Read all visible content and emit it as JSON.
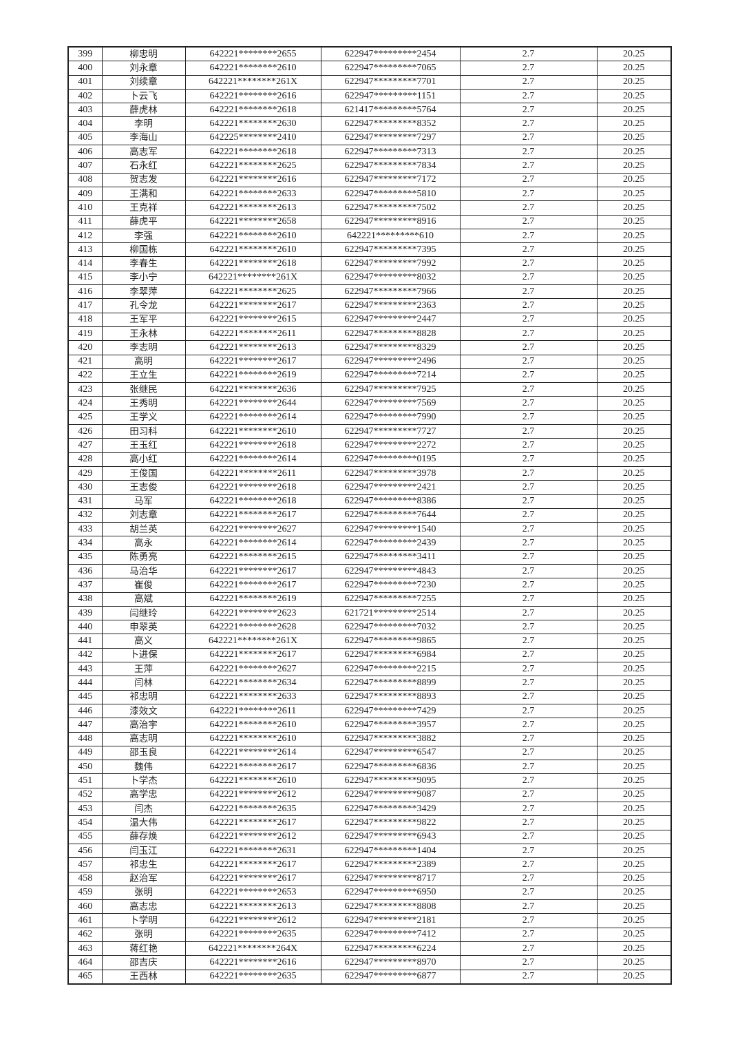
{
  "rows": [
    [
      "399",
      "柳忠明",
      "642221********2655",
      "622947*********2454",
      "2.7",
      "20.25"
    ],
    [
      "400",
      "刘永章",
      "642221********2610",
      "622947*********7065",
      "2.7",
      "20.25"
    ],
    [
      "401",
      "刘续章",
      "642221********261X",
      "622947*********7701",
      "2.7",
      "20.25"
    ],
    [
      "402",
      "卜云飞",
      "642221********2616",
      "622947*********1151",
      "2.7",
      "20.25"
    ],
    [
      "403",
      "薛虎林",
      "642221********2618",
      "621417*********5764",
      "2.7",
      "20.25"
    ],
    [
      "404",
      "李明",
      "642221********2630",
      "622947*********8352",
      "2.7",
      "20.25"
    ],
    [
      "405",
      "李海山",
      "642225********2410",
      "622947*********7297",
      "2.7",
      "20.25"
    ],
    [
      "406",
      "高志军",
      "642221********2618",
      "622947*********7313",
      "2.7",
      "20.25"
    ],
    [
      "407",
      "石永红",
      "642221********2625",
      "622947*********7834",
      "2.7",
      "20.25"
    ],
    [
      "408",
      "贺志发",
      "642221********2616",
      "622947*********7172",
      "2.7",
      "20.25"
    ],
    [
      "409",
      "王满和",
      "642221********2633",
      "622947*********5810",
      "2.7",
      "20.25"
    ],
    [
      "410",
      "王克祥",
      "642221********2613",
      "622947*********7502",
      "2.7",
      "20.25"
    ],
    [
      "411",
      "薛虎平",
      "642221********2658",
      "622947*********8916",
      "2.7",
      "20.25"
    ],
    [
      "412",
      "李强",
      "642221********2610",
      "642221*********610",
      "2.7",
      "20.25"
    ],
    [
      "413",
      "柳国栋",
      "642221********2610",
      "622947*********7395",
      "2.7",
      "20.25"
    ],
    [
      "414",
      "李春生",
      "642221********2618",
      "622947*********7992",
      "2.7",
      "20.25"
    ],
    [
      "415",
      "李小宁",
      "642221********261X",
      "622947*********8032",
      "2.7",
      "20.25"
    ],
    [
      "416",
      "李翠萍",
      "642221********2625",
      "622947*********7966",
      "2.7",
      "20.25"
    ],
    [
      "417",
      "孔令龙",
      "642221********2617",
      "622947*********2363",
      "2.7",
      "20.25"
    ],
    [
      "418",
      "王军平",
      "642221********2615",
      "622947*********2447",
      "2.7",
      "20.25"
    ],
    [
      "419",
      "王永林",
      "642221********2611",
      "622947*********8828",
      "2.7",
      "20.25"
    ],
    [
      "420",
      "李志明",
      "642221********2613",
      "622947*********8329",
      "2.7",
      "20.25"
    ],
    [
      "421",
      "高明",
      "642221********2617",
      "622947*********2496",
      "2.7",
      "20.25"
    ],
    [
      "422",
      "王立生",
      "642221********2619",
      "622947*********7214",
      "2.7",
      "20.25"
    ],
    [
      "423",
      "张继民",
      "642221********2636",
      "622947*********7925",
      "2.7",
      "20.25"
    ],
    [
      "424",
      "王秀明",
      "642221********2644",
      "622947*********7569",
      "2.7",
      "20.25"
    ],
    [
      "425",
      "王学义",
      "642221********2614",
      "622947*********7990",
      "2.7",
      "20.25"
    ],
    [
      "426",
      "田习科",
      "642221********2610",
      "622947*********7727",
      "2.7",
      "20.25"
    ],
    [
      "427",
      "王玉红",
      "642221********2618",
      "622947*********2272",
      "2.7",
      "20.25"
    ],
    [
      "428",
      "高小红",
      "642221********2614",
      "622947*********0195",
      "2.7",
      "20.25"
    ],
    [
      "429",
      "王俊国",
      "642221********2611",
      "622947*********3978",
      "2.7",
      "20.25"
    ],
    [
      "430",
      "王志俊",
      "642221********2618",
      "622947*********2421",
      "2.7",
      "20.25"
    ],
    [
      "431",
      "马军",
      "642221********2618",
      "622947*********8386",
      "2.7",
      "20.25"
    ],
    [
      "432",
      "刘志章",
      "642221********2617",
      "622947*********7644",
      "2.7",
      "20.25"
    ],
    [
      "433",
      "胡兰英",
      "642221********2627",
      "622947*********1540",
      "2.7",
      "20.25"
    ],
    [
      "434",
      "高永",
      "642221********2614",
      "622947*********2439",
      "2.7",
      "20.25"
    ],
    [
      "435",
      "陈勇亮",
      "642221********2615",
      "622947*********3411",
      "2.7",
      "20.25"
    ],
    [
      "436",
      "马治华",
      "642221********2617",
      "622947*********4843",
      "2.7",
      "20.25"
    ],
    [
      "437",
      "崔俊",
      "642221********2617",
      "622947*********7230",
      "2.7",
      "20.25"
    ],
    [
      "438",
      "高斌",
      "642221********2619",
      "622947*********7255",
      "2.7",
      "20.25"
    ],
    [
      "439",
      "闫继玲",
      "642221********2623",
      "621721*********2514",
      "2.7",
      "20.25"
    ],
    [
      "440",
      "申翠英",
      "642221********2628",
      "622947*********7032",
      "2.7",
      "20.25"
    ],
    [
      "441",
      "高义",
      "642221********261X",
      "622947*********9865",
      "2.7",
      "20.25"
    ],
    [
      "442",
      "卜进保",
      "642221********2617",
      "622947*********6984",
      "2.7",
      "20.25"
    ],
    [
      "443",
      "王萍",
      "642221********2627",
      "622947*********2215",
      "2.7",
      "20.25"
    ],
    [
      "444",
      "闫林",
      "642221********2634",
      "622947*********8899",
      "2.7",
      "20.25"
    ],
    [
      "445",
      "祁忠明",
      "642221********2633",
      "622947*********8893",
      "2.7",
      "20.25"
    ],
    [
      "446",
      "漆效文",
      "642221********2611",
      "622947*********7429",
      "2.7",
      "20.25"
    ],
    [
      "447",
      "高治宇",
      "642221********2610",
      "622947*********3957",
      "2.7",
      "20.25"
    ],
    [
      "448",
      "高志明",
      "642221********2610",
      "622947*********3882",
      "2.7",
      "20.25"
    ],
    [
      "449",
      "邵玉良",
      "642221********2614",
      "622947*********6547",
      "2.7",
      "20.25"
    ],
    [
      "450",
      "魏伟",
      "642221********2617",
      "622947*********6836",
      "2.7",
      "20.25"
    ],
    [
      "451",
      "卜学杰",
      "642221********2610",
      "622947*********9095",
      "2.7",
      "20.25"
    ],
    [
      "452",
      "高学忠",
      "642221********2612",
      "622947*********9087",
      "2.7",
      "20.25"
    ],
    [
      "453",
      "闫杰",
      "642221********2635",
      "622947*********3429",
      "2.7",
      "20.25"
    ],
    [
      "454",
      "温大伟",
      "642221********2617",
      "622947*********9822",
      "2.7",
      "20.25"
    ],
    [
      "455",
      "薛存焕",
      "642221********2612",
      "622947*********6943",
      "2.7",
      "20.25"
    ],
    [
      "456",
      "闫玉江",
      "642221********2631",
      "622947*********1404",
      "2.7",
      "20.25"
    ],
    [
      "457",
      "祁忠生",
      "642221********2617",
      "622947*********2389",
      "2.7",
      "20.25"
    ],
    [
      "458",
      "赵治军",
      "642221********2617",
      "622947*********8717",
      "2.7",
      "20.25"
    ],
    [
      "459",
      "张明",
      "642221********2653",
      "622947*********6950",
      "2.7",
      "20.25"
    ],
    [
      "460",
      "高志忠",
      "642221********2613",
      "622947*********8808",
      "2.7",
      "20.25"
    ],
    [
      "461",
      "卜学明",
      "642221********2612",
      "622947*********2181",
      "2.7",
      "20.25"
    ],
    [
      "462",
      "张明",
      "642221********2635",
      "622947*********7412",
      "2.7",
      "20.25"
    ],
    [
      "463",
      "蒋红艳",
      "642221********264X",
      "622947*********6224",
      "2.7",
      "20.25"
    ],
    [
      "464",
      "邵吉庆",
      "642221********2616",
      "622947*********8970",
      "2.7",
      "20.25"
    ],
    [
      "465",
      "王西林",
      "642221********2635",
      "622947*********6877",
      "2.7",
      "20.25"
    ]
  ]
}
